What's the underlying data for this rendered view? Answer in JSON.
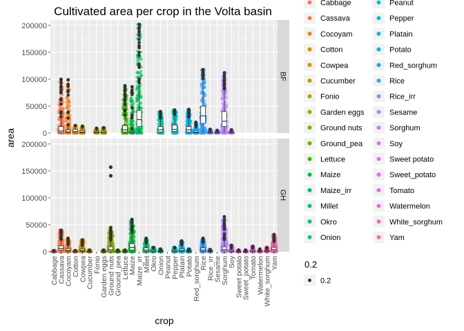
{
  "chart_data": {
    "type": "scatter",
    "title": "Cultivated area per crop in the Volta basin",
    "xlabel": "crop",
    "ylabel": "area",
    "ylim": [
      0,
      210000
    ],
    "yticks": [
      0,
      50000,
      100000,
      150000,
      200000
    ],
    "ytick_labels": [
      "0",
      "50000",
      "100000",
      "150000",
      "200000"
    ],
    "categories": [
      "Cabbage",
      "Cassava",
      "Cocoyam",
      "Cotton",
      "Cowpea",
      "Cucumber",
      "Fonio",
      "Garden eggs",
      "Ground nuts",
      "Ground_pea",
      "Lettuce",
      "Maize",
      "Maize_irr",
      "Millet",
      "Okro",
      "Onion",
      "Peanut",
      "Pepper",
      "Platain",
      "Potato",
      "Red_sorghum",
      "Rice",
      "Rice_irr",
      "Sesame",
      "Sorghum",
      "Soy",
      "Sweet potato",
      "Sweet_potato",
      "Tomato",
      "Watermelon",
      "White_sorghum",
      "Yam"
    ],
    "colors": [
      "#F8766D",
      "#F27D52",
      "#E9842C",
      "#DE8C00",
      "#D09400",
      "#C09B00",
      "#AEA200",
      "#9AA800",
      "#82AD00",
      "#64B200",
      "#39B600",
      "#00BA38",
      "#00BD5C",
      "#00BF77",
      "#00C08E",
      "#00C1A3",
      "#00C0B7",
      "#00BECA",
      "#00BBDA",
      "#00B6E9",
      "#00B0F6",
      "#35A2FF",
      "#7997FF",
      "#9B8EFF",
      "#B983FF",
      "#CF78FF",
      "#E16FF8",
      "#EE67EC",
      "#F863DF",
      "#FD61D0",
      "#FF62BE",
      "#FF65AB"
    ],
    "panels": [
      {
        "strip": "BF",
        "series": [
          {
            "crop": "Cassava",
            "max": 100000,
            "q1": 1200,
            "median": 4000,
            "q3": 12000,
            "spread": 1
          },
          {
            "crop": "Cocoyam",
            "max": 99000,
            "q1": 800,
            "median": 2500,
            "q3": 6000,
            "spread": 0.5
          },
          {
            "crop": "Cotton",
            "max": 14000,
            "q1": 1000,
            "median": 3000,
            "q3": 7000,
            "spread": 0.4
          },
          {
            "crop": "Cowpea",
            "max": 13000,
            "q1": 600,
            "median": 2000,
            "q3": 5000,
            "spread": 0.4
          },
          {
            "crop": "Fonio",
            "max": 9000,
            "q1": 500,
            "median": 1500,
            "q3": 3500,
            "spread": 0.4
          },
          {
            "crop": "Garden eggs",
            "max": 10000,
            "q1": 500,
            "median": 1500,
            "q3": 4000,
            "spread": 0.4
          },
          {
            "crop": "Lettuce",
            "max": 88000,
            "q1": 2000,
            "median": 6000,
            "q3": 14000,
            "spread": 1
          },
          {
            "crop": "Maize",
            "max": 86000,
            "q1": 300,
            "median": 1000,
            "q3": 3000,
            "spread": 0.3
          },
          {
            "crop": "Maize_irr",
            "max": 202000,
            "q1": 12000,
            "median": 25000,
            "q3": 42000,
            "spread": 1
          },
          {
            "crop": "Onion",
            "max": 40000,
            "q1": 2000,
            "median": 6000,
            "q3": 12000,
            "spread": 0.8
          },
          {
            "crop": "Pepper",
            "max": 43000,
            "q1": 3000,
            "median": 7000,
            "q3": 15000,
            "spread": 0.9
          },
          {
            "crop": "Potato",
            "max": 44000,
            "q1": 2000,
            "median": 6000,
            "q3": 12000,
            "spread": 0.8
          },
          {
            "crop": "Red_sorghum",
            "max": 20000,
            "q1": 500,
            "median": 2000,
            "q3": 5000,
            "spread": 0.4
          },
          {
            "crop": "Rice",
            "max": 118000,
            "q1": 18000,
            "median": 32000,
            "q3": 50000,
            "spread": 1
          },
          {
            "crop": "Rice_irr",
            "max": 7000,
            "q1": 300,
            "median": 1000,
            "q3": 2500,
            "spread": 0.3
          },
          {
            "crop": "Sesame",
            "max": 5000,
            "q1": 300,
            "median": 800,
            "q3": 2000,
            "spread": 0.3
          },
          {
            "crop": "Sorghum",
            "max": 112000,
            "q1": 12000,
            "median": 22000,
            "q3": 40000,
            "spread": 1
          },
          {
            "crop": "Soy",
            "max": 6000,
            "q1": 300,
            "median": 1000,
            "q3": 2500,
            "spread": 0.3
          }
        ]
      },
      {
        "strip": "GH",
        "series": [
          {
            "crop": "Cabbage",
            "max": 2000,
            "q1": 100,
            "median": 300,
            "q3": 700,
            "spread": 0.5
          },
          {
            "crop": "Cassava",
            "max": 40000,
            "q1": 3000,
            "median": 6000,
            "q3": 11000,
            "spread": 1
          },
          {
            "crop": "Cocoyam",
            "max": 25000,
            "q1": 1000,
            "median": 2500,
            "q3": 6000,
            "spread": 0.6
          },
          {
            "crop": "Cotton",
            "max": 2000,
            "q1": 100,
            "median": 300,
            "q3": 700,
            "spread": 0.3
          },
          {
            "crop": "Cowpea",
            "max": 22000,
            "q1": 800,
            "median": 2000,
            "q3": 5000,
            "spread": 0.8
          },
          {
            "crop": "Cucumber",
            "max": 3000,
            "q1": 100,
            "median": 300,
            "q3": 800,
            "spread": 0.3
          },
          {
            "crop": "Garden eggs",
            "max": 3000,
            "q1": 100,
            "median": 300,
            "q3": 800,
            "spread": 0.3
          },
          {
            "crop": "Ground nuts",
            "max": 45000,
            "q1": 1500,
            "median": 4000,
            "q3": 9000,
            "spread": 1
          },
          {
            "crop": "Ground_pea",
            "max": 3000,
            "q1": 100,
            "median": 300,
            "q3": 800,
            "spread": 0.3
          },
          {
            "crop": "Lettuce",
            "max": 3000,
            "q1": 100,
            "median": 300,
            "q3": 800,
            "spread": 0.3
          },
          {
            "crop": "Maize",
            "max": 60000,
            "q1": 3000,
            "median": 8000,
            "q3": 15000,
            "spread": 1
          },
          {
            "crop": "Millet",
            "max": 25000,
            "q1": 1000,
            "median": 3000,
            "q3": 7000,
            "spread": 0.8
          },
          {
            "crop": "Okro",
            "max": 8000,
            "q1": 300,
            "median": 1000,
            "q3": 3000,
            "spread": 0.4
          },
          {
            "crop": "Onion",
            "max": 5000,
            "q1": 200,
            "median": 600,
            "q3": 1500,
            "spread": 0.3
          },
          {
            "crop": "Pepper",
            "max": 8000,
            "q1": 300,
            "median": 1000,
            "q3": 3000,
            "spread": 0.4
          },
          {
            "crop": "Platain",
            "max": 20000,
            "q1": 500,
            "median": 2000,
            "q3": 5000,
            "spread": 0.6
          },
          {
            "crop": "Potato",
            "max": 5000,
            "q1": 200,
            "median": 600,
            "q3": 1500,
            "spread": 0.3
          },
          {
            "crop": "Rice",
            "max": 25000,
            "q1": 1000,
            "median": 3000,
            "q3": 7000,
            "spread": 0.7
          },
          {
            "crop": "Rice_irr",
            "max": 4000,
            "q1": 200,
            "median": 600,
            "q3": 1500,
            "spread": 0.3
          },
          {
            "crop": "Sorghum",
            "max": 65000,
            "q1": 1500,
            "median": 4000,
            "q3": 9000,
            "spread": 1
          },
          {
            "crop": "Soy",
            "max": 12000,
            "q1": 300,
            "median": 1000,
            "q3": 3000,
            "spread": 0.5
          },
          {
            "crop": "Sweet potato",
            "max": 3000,
            "q1": 100,
            "median": 300,
            "q3": 800,
            "spread": 0.3
          },
          {
            "crop": "Sweet_potato",
            "max": 3000,
            "q1": 100,
            "median": 300,
            "q3": 800,
            "spread": 0.3
          },
          {
            "crop": "Tomato",
            "max": 10000,
            "q1": 300,
            "median": 1000,
            "q3": 3000,
            "spread": 0.5
          },
          {
            "crop": "Watermelon",
            "max": 5000,
            "q1": 200,
            "median": 600,
            "q3": 1500,
            "spread": 0.3
          },
          {
            "crop": "White_sorghum",
            "max": 8000,
            "q1": 300,
            "median": 1000,
            "q3": 2500,
            "spread": 0.4
          },
          {
            "crop": "Yam",
            "max": 32000,
            "q1": 1500,
            "median": 4000,
            "q3": 8000,
            "spread": 0.9
          }
        ],
        "outliers": [
          {
            "crop": "Ground nuts",
            "value": 157000
          },
          {
            "crop": "Ground nuts",
            "value": 141000
          }
        ]
      }
    ],
    "legend": {
      "title": "",
      "entries": [
        "Cabbage",
        "Cassava",
        "Cocoyam",
        "Cotton",
        "Cowpea",
        "Cucumber",
        "Fonio",
        "Garden eggs",
        "Ground nuts",
        "Ground_pea",
        "Lettuce",
        "Maize",
        "Maize_irr",
        "Millet",
        "Okro",
        "Onion",
        "Peanut",
        "Pepper",
        "Platain",
        "Potato",
        "Red_sorghum",
        "Rice",
        "Rice_irr",
        "Sesame",
        "Sorghum",
        "Soy",
        "Sweet potato",
        "Sweet_potato",
        "Tomato",
        "Watermelon",
        "White_sorghum",
        "Yam"
      ],
      "placement": "right"
    },
    "size_legend": {
      "title": "0.2",
      "label": "0.2"
    },
    "grid": true
  }
}
